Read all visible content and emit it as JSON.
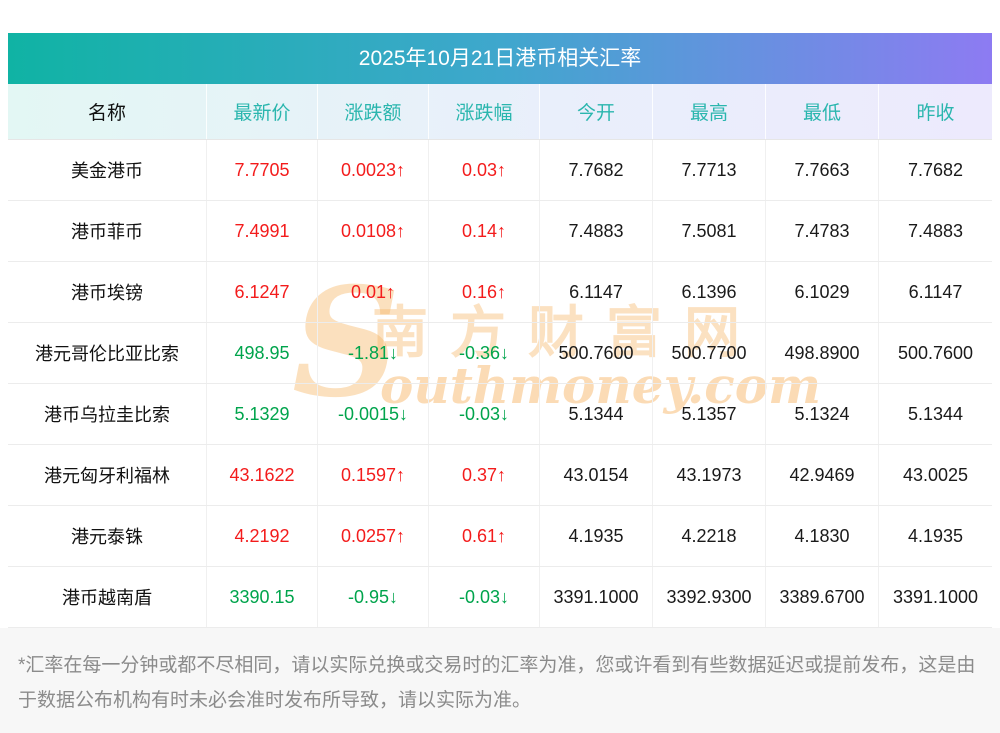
{
  "title": "2025年10月21日港币相关汇率",
  "table": {
    "headers": [
      "名称",
      "最新价",
      "涨跌额",
      "涨跌幅",
      "今开",
      "最高",
      "最低",
      "昨收"
    ],
    "rows": [
      {
        "name": "美金港币",
        "latest": "7.7705",
        "change": "0.0023↑",
        "pct": "0.03↑",
        "open": "7.7682",
        "high": "7.7713",
        "low": "7.7663",
        "prev": "7.7682",
        "dir": "up"
      },
      {
        "name": "港币菲币",
        "latest": "7.4991",
        "change": "0.0108↑",
        "pct": "0.14↑",
        "open": "7.4883",
        "high": "7.5081",
        "low": "7.4783",
        "prev": "7.4883",
        "dir": "up"
      },
      {
        "name": "港币埃镑",
        "latest": "6.1247",
        "change": "0.01↑",
        "pct": "0.16↑",
        "open": "6.1147",
        "high": "6.1396",
        "low": "6.1029",
        "prev": "6.1147",
        "dir": "up"
      },
      {
        "name": "港元哥伦比亚比索",
        "latest": "498.95",
        "change": "-1.81↓",
        "pct": "-0.36↓",
        "open": "500.7600",
        "high": "500.7700",
        "low": "498.8900",
        "prev": "500.7600",
        "dir": "down"
      },
      {
        "name": "港币乌拉圭比索",
        "latest": "5.1329",
        "change": "-0.0015↓",
        "pct": "-0.03↓",
        "open": "5.1344",
        "high": "5.1357",
        "low": "5.1324",
        "prev": "5.1344",
        "dir": "down"
      },
      {
        "name": "港元匈牙利福林",
        "latest": "43.1622",
        "change": "0.1597↑",
        "pct": "0.37↑",
        "open": "43.0154",
        "high": "43.1973",
        "low": "42.9469",
        "prev": "43.0025",
        "dir": "up"
      },
      {
        "name": "港元泰铢",
        "latest": "4.2192",
        "change": "0.0257↑",
        "pct": "0.61↑",
        "open": "4.1935",
        "high": "4.2218",
        "low": "4.1830",
        "prev": "4.1935",
        "dir": "up"
      },
      {
        "name": "港币越南盾",
        "latest": "3390.15",
        "change": "-0.95↓",
        "pct": "-0.03↓",
        "open": "3391.1000",
        "high": "3392.9300",
        "low": "3389.6700",
        "prev": "3391.1000",
        "dir": "down"
      }
    ]
  },
  "watermark": {
    "s_letter": "S",
    "line_cn": "南方财富网",
    "line_en": "outhmoney.com"
  },
  "footnote": "*汇率在每一分钟或都不尽相同，请以实际兑换或交易时的汇率为准，您或许看到有些数据延迟或提前发布，这是由于数据公布机构有时未必会准时发布所导致，请以实际为准。",
  "colors": {
    "up": "#f31c1c",
    "down": "#00a44c",
    "header_text": "#2ab6ae",
    "title_gradient_left": "#10b3a4",
    "title_gradient_right": "#8d7bf2",
    "watermark": "#f6b464"
  },
  "chart_data": {
    "type": "table",
    "title": "2025年10月21日港币相关汇率",
    "columns": [
      "名称",
      "最新价",
      "涨跌额",
      "涨跌幅",
      "今开",
      "最高",
      "最低",
      "昨收"
    ],
    "rows": [
      [
        "美金港币",
        "7.7705",
        "0.0023↑",
        "0.03↑",
        "7.7682",
        "7.7713",
        "7.7663",
        "7.7682"
      ],
      [
        "港币菲币",
        "7.4991",
        "0.0108↑",
        "0.14↑",
        "7.4883",
        "7.5081",
        "7.4783",
        "7.4883"
      ],
      [
        "港币埃镑",
        "6.1247",
        "0.01↑",
        "0.16↑",
        "6.1147",
        "6.1396",
        "6.1029",
        "6.1147"
      ],
      [
        "港元哥伦比亚比索",
        "498.95",
        "-1.81↓",
        "-0.36↓",
        "500.7600",
        "500.7700",
        "498.8900",
        "500.7600"
      ],
      [
        "港币乌拉圭比索",
        "5.1329",
        "-0.0015↓",
        "-0.03↓",
        "5.1344",
        "5.1357",
        "5.1324",
        "5.1344"
      ],
      [
        "港元匈牙利福林",
        "43.1622",
        "0.1597↑",
        "0.37↑",
        "43.0154",
        "43.1973",
        "42.9469",
        "43.0025"
      ],
      [
        "港元泰铢",
        "4.2192",
        "0.0257↑",
        "0.61↑",
        "4.1935",
        "4.2218",
        "4.1830",
        "4.1935"
      ],
      [
        "港币越南盾",
        "3390.15",
        "-0.95↓",
        "-0.03↓",
        "3391.1000",
        "3392.9300",
        "3389.6700",
        "3391.1000"
      ]
    ],
    "notes": "red = 上涨 (up), green = 下跌 (down)"
  }
}
